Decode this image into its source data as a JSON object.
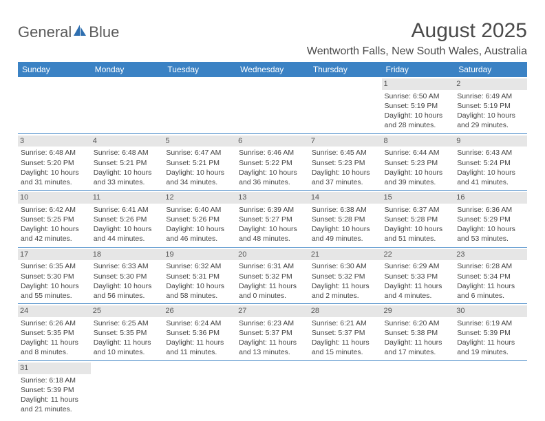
{
  "brand": {
    "general": "General",
    "blue": "Blue"
  },
  "title": "August 2025",
  "location": "Wentworth Falls, New South Wales, Australia",
  "colors": {
    "header_bg": "#3b82c4",
    "header_fg": "#ffffff",
    "daynum_bg": "#e6e6e6",
    "row_divider": "#3b82c4",
    "text": "#444444",
    "logo_blue": "#2f6fb0"
  },
  "weekdays": [
    "Sunday",
    "Monday",
    "Tuesday",
    "Wednesday",
    "Thursday",
    "Friday",
    "Saturday"
  ],
  "weeks": [
    [
      null,
      null,
      null,
      null,
      null,
      {
        "day": "1",
        "sunrise": "Sunrise: 6:50 AM",
        "sunset": "Sunset: 5:19 PM",
        "daylight1": "Daylight: 10 hours",
        "daylight2": "and 28 minutes."
      },
      {
        "day": "2",
        "sunrise": "Sunrise: 6:49 AM",
        "sunset": "Sunset: 5:19 PM",
        "daylight1": "Daylight: 10 hours",
        "daylight2": "and 29 minutes."
      }
    ],
    [
      {
        "day": "3",
        "sunrise": "Sunrise: 6:48 AM",
        "sunset": "Sunset: 5:20 PM",
        "daylight1": "Daylight: 10 hours",
        "daylight2": "and 31 minutes."
      },
      {
        "day": "4",
        "sunrise": "Sunrise: 6:48 AM",
        "sunset": "Sunset: 5:21 PM",
        "daylight1": "Daylight: 10 hours",
        "daylight2": "and 33 minutes."
      },
      {
        "day": "5",
        "sunrise": "Sunrise: 6:47 AM",
        "sunset": "Sunset: 5:21 PM",
        "daylight1": "Daylight: 10 hours",
        "daylight2": "and 34 minutes."
      },
      {
        "day": "6",
        "sunrise": "Sunrise: 6:46 AM",
        "sunset": "Sunset: 5:22 PM",
        "daylight1": "Daylight: 10 hours",
        "daylight2": "and 36 minutes."
      },
      {
        "day": "7",
        "sunrise": "Sunrise: 6:45 AM",
        "sunset": "Sunset: 5:23 PM",
        "daylight1": "Daylight: 10 hours",
        "daylight2": "and 37 minutes."
      },
      {
        "day": "8",
        "sunrise": "Sunrise: 6:44 AM",
        "sunset": "Sunset: 5:23 PM",
        "daylight1": "Daylight: 10 hours",
        "daylight2": "and 39 minutes."
      },
      {
        "day": "9",
        "sunrise": "Sunrise: 6:43 AM",
        "sunset": "Sunset: 5:24 PM",
        "daylight1": "Daylight: 10 hours",
        "daylight2": "and 41 minutes."
      }
    ],
    [
      {
        "day": "10",
        "sunrise": "Sunrise: 6:42 AM",
        "sunset": "Sunset: 5:25 PM",
        "daylight1": "Daylight: 10 hours",
        "daylight2": "and 42 minutes."
      },
      {
        "day": "11",
        "sunrise": "Sunrise: 6:41 AM",
        "sunset": "Sunset: 5:26 PM",
        "daylight1": "Daylight: 10 hours",
        "daylight2": "and 44 minutes."
      },
      {
        "day": "12",
        "sunrise": "Sunrise: 6:40 AM",
        "sunset": "Sunset: 5:26 PM",
        "daylight1": "Daylight: 10 hours",
        "daylight2": "and 46 minutes."
      },
      {
        "day": "13",
        "sunrise": "Sunrise: 6:39 AM",
        "sunset": "Sunset: 5:27 PM",
        "daylight1": "Daylight: 10 hours",
        "daylight2": "and 48 minutes."
      },
      {
        "day": "14",
        "sunrise": "Sunrise: 6:38 AM",
        "sunset": "Sunset: 5:28 PM",
        "daylight1": "Daylight: 10 hours",
        "daylight2": "and 49 minutes."
      },
      {
        "day": "15",
        "sunrise": "Sunrise: 6:37 AM",
        "sunset": "Sunset: 5:28 PM",
        "daylight1": "Daylight: 10 hours",
        "daylight2": "and 51 minutes."
      },
      {
        "day": "16",
        "sunrise": "Sunrise: 6:36 AM",
        "sunset": "Sunset: 5:29 PM",
        "daylight1": "Daylight: 10 hours",
        "daylight2": "and 53 minutes."
      }
    ],
    [
      {
        "day": "17",
        "sunrise": "Sunrise: 6:35 AM",
        "sunset": "Sunset: 5:30 PM",
        "daylight1": "Daylight: 10 hours",
        "daylight2": "and 55 minutes."
      },
      {
        "day": "18",
        "sunrise": "Sunrise: 6:33 AM",
        "sunset": "Sunset: 5:30 PM",
        "daylight1": "Daylight: 10 hours",
        "daylight2": "and 56 minutes."
      },
      {
        "day": "19",
        "sunrise": "Sunrise: 6:32 AM",
        "sunset": "Sunset: 5:31 PM",
        "daylight1": "Daylight: 10 hours",
        "daylight2": "and 58 minutes."
      },
      {
        "day": "20",
        "sunrise": "Sunrise: 6:31 AM",
        "sunset": "Sunset: 5:32 PM",
        "daylight1": "Daylight: 11 hours",
        "daylight2": "and 0 minutes."
      },
      {
        "day": "21",
        "sunrise": "Sunrise: 6:30 AM",
        "sunset": "Sunset: 5:32 PM",
        "daylight1": "Daylight: 11 hours",
        "daylight2": "and 2 minutes."
      },
      {
        "day": "22",
        "sunrise": "Sunrise: 6:29 AM",
        "sunset": "Sunset: 5:33 PM",
        "daylight1": "Daylight: 11 hours",
        "daylight2": "and 4 minutes."
      },
      {
        "day": "23",
        "sunrise": "Sunrise: 6:28 AM",
        "sunset": "Sunset: 5:34 PM",
        "daylight1": "Daylight: 11 hours",
        "daylight2": "and 6 minutes."
      }
    ],
    [
      {
        "day": "24",
        "sunrise": "Sunrise: 6:26 AM",
        "sunset": "Sunset: 5:35 PM",
        "daylight1": "Daylight: 11 hours",
        "daylight2": "and 8 minutes."
      },
      {
        "day": "25",
        "sunrise": "Sunrise: 6:25 AM",
        "sunset": "Sunset: 5:35 PM",
        "daylight1": "Daylight: 11 hours",
        "daylight2": "and 10 minutes."
      },
      {
        "day": "26",
        "sunrise": "Sunrise: 6:24 AM",
        "sunset": "Sunset: 5:36 PM",
        "daylight1": "Daylight: 11 hours",
        "daylight2": "and 11 minutes."
      },
      {
        "day": "27",
        "sunrise": "Sunrise: 6:23 AM",
        "sunset": "Sunset: 5:37 PM",
        "daylight1": "Daylight: 11 hours",
        "daylight2": "and 13 minutes."
      },
      {
        "day": "28",
        "sunrise": "Sunrise: 6:21 AM",
        "sunset": "Sunset: 5:37 PM",
        "daylight1": "Daylight: 11 hours",
        "daylight2": "and 15 minutes."
      },
      {
        "day": "29",
        "sunrise": "Sunrise: 6:20 AM",
        "sunset": "Sunset: 5:38 PM",
        "daylight1": "Daylight: 11 hours",
        "daylight2": "and 17 minutes."
      },
      {
        "day": "30",
        "sunrise": "Sunrise: 6:19 AM",
        "sunset": "Sunset: 5:39 PM",
        "daylight1": "Daylight: 11 hours",
        "daylight2": "and 19 minutes."
      }
    ],
    [
      {
        "day": "31",
        "sunrise": "Sunrise: 6:18 AM",
        "sunset": "Sunset: 5:39 PM",
        "daylight1": "Daylight: 11 hours",
        "daylight2": "and 21 minutes."
      },
      null,
      null,
      null,
      null,
      null,
      null
    ]
  ]
}
